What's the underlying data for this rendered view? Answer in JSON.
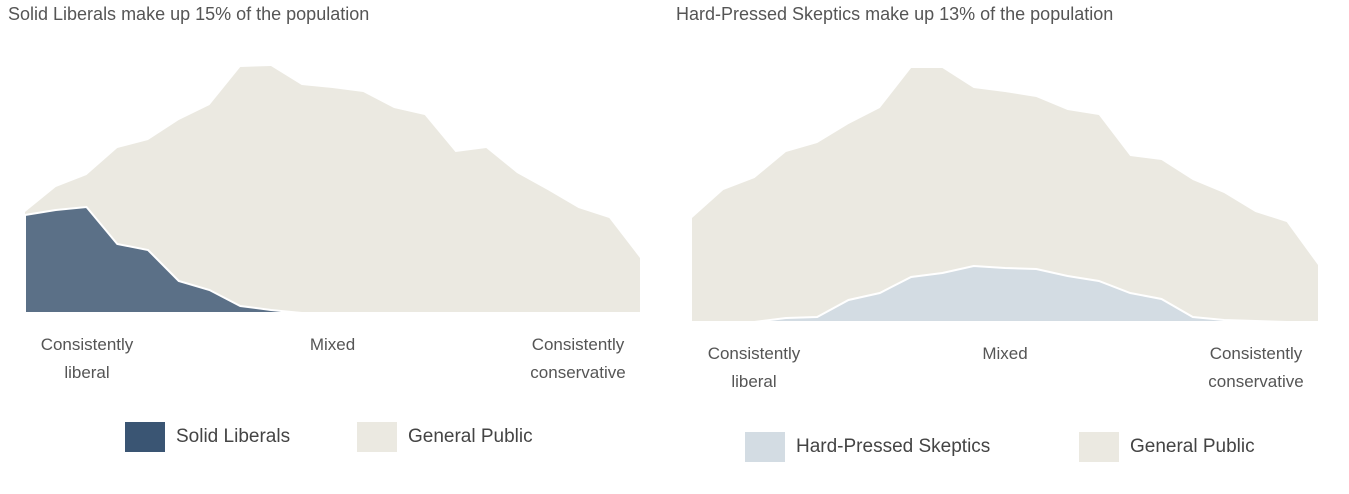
{
  "chart_data": [
    {
      "type": "area",
      "title": "Solid Liberals make up 15% of the population",
      "categories": [
        "Consistently liberal",
        null,
        null,
        null,
        null,
        null,
        null,
        null,
        null,
        null,
        "Mixed",
        null,
        null,
        null,
        null,
        null,
        null,
        null,
        null,
        null,
        "Consistently conservative"
      ],
      "series": [
        {
          "name": "Solid Liberals",
          "color": "#3a5573",
          "values": [
            98,
            103,
            106,
            69,
            63,
            32,
            23,
            7,
            3,
            0,
            0,
            0,
            0,
            0,
            0,
            0,
            0,
            0,
            0,
            0,
            0
          ]
        },
        {
          "name": "General Public",
          "color": "#ebe9e1",
          "values": [
            101,
            126,
            138,
            165,
            173,
            193,
            208,
            246,
            247,
            228,
            225,
            221,
            205,
            198,
            161,
            165,
            140,
            123,
            105,
            95,
            55
          ]
        }
      ]
    },
    {
      "type": "area",
      "title": "Hard-Pressed Skeptics make up 13% of the population",
      "categories": [
        "Consistently liberal",
        null,
        null,
        null,
        null,
        null,
        null,
        null,
        null,
        null,
        "Mixed",
        null,
        null,
        null,
        null,
        null,
        null,
        null,
        null,
        null,
        "Consistently conservative"
      ],
      "series": [
        {
          "name": "Hard-Pressed Skeptics",
          "color": "#d3dce3",
          "values": [
            0,
            0,
            0,
            4,
            5,
            22,
            29,
            45,
            49,
            56,
            54,
            53,
            46,
            41,
            29,
            23,
            5,
            2,
            1,
            0,
            0
          ]
        },
        {
          "name": "General Public",
          "color": "#ebe9e1",
          "values": [
            104,
            132,
            144,
            170,
            179,
            198,
            214,
            254,
            254,
            234,
            230,
            225,
            212,
            207,
            166,
            162,
            142,
            129,
            110,
            100,
            57
          ]
        }
      ]
    }
  ]
}
